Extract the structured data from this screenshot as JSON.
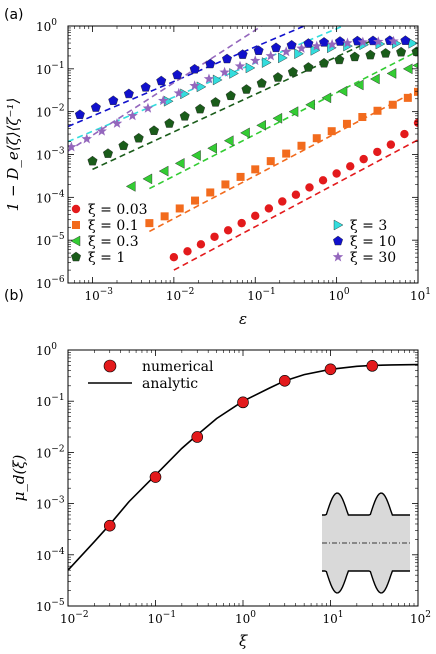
{
  "figure": {
    "panel_a_label": "(a)",
    "panel_b_label": "(b)"
  },
  "chart_data": [
    {
      "type": "scatter",
      "panel": "(a)",
      "xlabel": "ε",
      "ylabel": "1 − D_e⟨ζ⟩⟨ζ⁻¹⟩",
      "xscale": "log",
      "yscale": "log",
      "xlim": [
        0.0005,
        10
      ],
      "ylim": [
        1e-06,
        1
      ],
      "xticks": [
        {
          "base": "10",
          "exp": "−3"
        },
        {
          "base": "10",
          "exp": "−2"
        },
        {
          "base": "10",
          "exp": "−1"
        },
        {
          "base": "10",
          "exp": "0"
        },
        {
          "base": "10",
          "exp": "1"
        }
      ],
      "yticks": [
        {
          "base": "10",
          "exp": "−6"
        },
        {
          "base": "10",
          "exp": "−5"
        },
        {
          "base": "10",
          "exp": "−4"
        },
        {
          "base": "10",
          "exp": "−3"
        },
        {
          "base": "10",
          "exp": "−2"
        },
        {
          "base": "10",
          "exp": "−1"
        },
        {
          "base": "10",
          "exp": "0"
        }
      ],
      "legend_left_placement": "lower-left",
      "legend_right_placement": "lower-right",
      "series": [
        {
          "name": "ξ = 0.03",
          "marker": "circle",
          "color": "#e31a1c",
          "x": [
            0.01,
            0.0147,
            0.0215,
            0.0316,
            0.0464,
            0.0681,
            0.1,
            0.147,
            0.215,
            0.316,
            0.464,
            0.681,
            1.0,
            1.47,
            2.15,
            3.16,
            4.64,
            6.81,
            10.0
          ],
          "y": [
            4e-06,
            5.5e-06,
            8e-06,
            1.2e-05,
            1.7e-05,
            2.5e-05,
            3.7e-05,
            5.5e-05,
            8e-05,
            0.000115,
            0.00017,
            0.00025,
            0.00036,
            0.00053,
            0.00078,
            0.00115,
            0.0017,
            0.003,
            0.0055
          ],
          "fit": {
            "x": [
              0.01,
              10
            ],
            "y": [
              2e-06,
              0.0022
            ]
          }
        },
        {
          "name": "ξ = 0.1",
          "marker": "square",
          "color": "#f26b1d",
          "x": [
            0.005,
            0.0077,
            0.0118,
            0.0182,
            0.028,
            0.043,
            0.066,
            0.1,
            0.155,
            0.24,
            0.37,
            0.57,
            0.87,
            1.34,
            2.07,
            3.18,
            4.9,
            7.5,
            10.0
          ],
          "y": [
            2.5e-05,
            3.6e-05,
            5.5e-05,
            8.4e-05,
            0.00013,
            0.0002,
            0.0003,
            0.00045,
            0.0007,
            0.00105,
            0.0016,
            0.0024,
            0.0035,
            0.0052,
            0.0075,
            0.0105,
            0.0145,
            0.021,
            0.029
          ],
          "fit": {
            "x": [
              0.005,
              10
            ],
            "y": [
              1.6e-05,
              0.032
            ]
          }
        },
        {
          "name": "ξ = 0.3",
          "marker": "triangle-left",
          "color": "#33cc33",
          "x": [
            0.003,
            0.0048,
            0.0076,
            0.012,
            0.019,
            0.03,
            0.048,
            0.076,
            0.12,
            0.19,
            0.3,
            0.48,
            0.76,
            1.2,
            1.9,
            3.0,
            4.8,
            7.6,
            10.0
          ],
          "y": [
            0.00018,
            0.00027,
            0.00041,
            0.00062,
            0.00095,
            0.0014,
            0.0021,
            0.0032,
            0.0048,
            0.007,
            0.01,
            0.0145,
            0.021,
            0.03,
            0.042,
            0.058,
            0.078,
            0.1,
            0.12
          ],
          "fit": {
            "x": [
              0.005,
              10
            ],
            "y": [
              0.00016,
              0.26
            ]
          }
        },
        {
          "name": "ξ = 1",
          "marker": "pentagon",
          "color": "#1a5c1a",
          "x": [
            0.001,
            0.00155,
            0.0024,
            0.0037,
            0.0057,
            0.0088,
            0.0136,
            0.021,
            0.0325,
            0.05,
            0.078,
            0.12,
            0.19,
            0.29,
            0.45,
            0.7,
            1.08,
            1.67,
            2.6,
            4.0,
            6.2,
            9.6
          ],
          "y": [
            0.0007,
            0.00105,
            0.0016,
            0.0024,
            0.0036,
            0.0053,
            0.0078,
            0.0115,
            0.0165,
            0.0235,
            0.033,
            0.046,
            0.063,
            0.084,
            0.108,
            0.135,
            0.162,
            0.19,
            0.21,
            0.23,
            0.245,
            0.25
          ],
          "fit": {
            "x": [
              0.001,
              3.0
            ],
            "y": [
              0.00045,
              0.5
            ]
          }
        },
        {
          "name": "ξ = 3",
          "marker": "triangle-right",
          "color": "#33dddd",
          "x": [
            0.0085,
            0.0135,
            0.0215,
            0.034,
            0.054,
            0.086,
            0.136,
            0.215,
            0.34,
            0.54,
            0.86,
            1.36,
            2.15,
            3.4,
            5.4,
            8.6
          ],
          "y": [
            0.0175,
            0.026,
            0.038,
            0.055,
            0.078,
            0.105,
            0.14,
            0.18,
            0.225,
            0.27,
            0.31,
            0.34,
            0.365,
            0.38,
            0.39,
            0.395
          ],
          "fit": {
            "x": [
              0.0005,
              1.2
            ],
            "y": [
              0.002,
              1.0
            ]
          }
        },
        {
          "name": "ξ = 10",
          "marker": "pentagon",
          "color": "#1111cc",
          "x": [
            0.0007,
            0.0011,
            0.0018,
            0.0028,
            0.0045,
            0.007,
            0.011,
            0.018,
            0.028,
            0.045,
            0.07,
            0.11,
            0.18,
            0.28,
            0.45,
            0.7,
            1.1,
            1.8,
            2.8,
            4.5,
            7.0
          ],
          "y": [
            0.0085,
            0.0125,
            0.018,
            0.026,
            0.037,
            0.052,
            0.072,
            0.098,
            0.13,
            0.17,
            0.215,
            0.265,
            0.31,
            0.355,
            0.39,
            0.415,
            0.435,
            0.445,
            0.45,
            0.455,
            0.455
          ],
          "fit": {
            "x": [
              0.0005,
              0.4
            ],
            "y": [
              0.0045,
              1.0
            ]
          }
        },
        {
          "name": "ξ = 30",
          "marker": "star",
          "color": "#9467bd",
          "x": [
            0.00055,
            0.00085,
            0.0013,
            0.002,
            0.0031,
            0.0048,
            0.0074,
            0.0115,
            0.018,
            0.027,
            0.042,
            0.065,
            0.1,
            0.155,
            0.24,
            0.37,
            0.57,
            0.88,
            1.36,
            2.1,
            3.25,
            5.0
          ],
          "y": [
            0.0015,
            0.0023,
            0.0035,
            0.0053,
            0.008,
            0.012,
            0.018,
            0.027,
            0.04,
            0.058,
            0.083,
            0.115,
            0.155,
            0.2,
            0.25,
            0.3,
            0.34,
            0.37,
            0.4,
            0.42,
            0.43,
            0.44
          ],
          "fit": {
            "x": [
              0.0005,
              0.12
            ],
            "y": [
              0.0012,
              1.0
            ]
          }
        }
      ]
    },
    {
      "type": "line",
      "panel": "(b)",
      "xlabel": "ξ",
      "ylabel": "μ_d(ξ)",
      "xscale": "log",
      "yscale": "log",
      "xlim": [
        0.01,
        100
      ],
      "ylim": [
        1e-05,
        1
      ],
      "xticks": [
        {
          "base": "10",
          "exp": "−2"
        },
        {
          "base": "10",
          "exp": "−1"
        },
        {
          "base": "10",
          "exp": "0"
        },
        {
          "base": "10",
          "exp": "1"
        },
        {
          "base": "10",
          "exp": "2"
        }
      ],
      "yticks": [
        {
          "base": "10",
          "exp": "−5"
        },
        {
          "base": "10",
          "exp": "−4"
        },
        {
          "base": "10",
          "exp": "−3"
        },
        {
          "base": "10",
          "exp": "−2"
        },
        {
          "base": "10",
          "exp": "−1"
        },
        {
          "base": "10",
          "exp": "0"
        }
      ],
      "legend_placement": "top-left",
      "series": [
        {
          "name": "numerical",
          "marker": "circle",
          "color": "#e31a1c",
          "x": [
            0.03,
            0.1,
            0.3,
            1,
            3,
            10,
            30
          ],
          "y": [
            0.00037,
            0.0033,
            0.02,
            0.095,
            0.25,
            0.42,
            0.49
          ]
        },
        {
          "name": "analytic",
          "marker": "none",
          "color": "#000000",
          "x": [
            0.01,
            0.02,
            0.03,
            0.05,
            0.1,
            0.2,
            0.3,
            0.5,
            1,
            2,
            3,
            5,
            10,
            20,
            30,
            50,
            100
          ],
          "y": [
            5e-05,
            0.00018,
            0.00039,
            0.0011,
            0.0036,
            0.012,
            0.022,
            0.046,
            0.1,
            0.18,
            0.25,
            0.33,
            0.42,
            0.48,
            0.5,
            0.51,
            0.52
          ]
        }
      ]
    }
  ]
}
